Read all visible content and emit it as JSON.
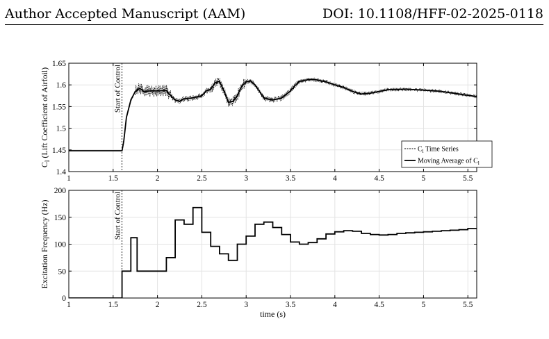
{
  "header": {
    "left": "Author Accepted Manuscript (AAM)",
    "right": "DOI: 10.1108/HFF-02-2025-0118"
  },
  "chart_data": [
    {
      "type": "line",
      "ylabel": "C_l (Lift Coefficient of Airfoil)",
      "xlim": [
        1,
        5.6
      ],
      "ylim": [
        1.4,
        1.65
      ],
      "xticks": [
        "1",
        "1.5",
        "2",
        "2.5",
        "3",
        "3.5",
        "4",
        "4.5",
        "5",
        "5.5"
      ],
      "yticks": [
        "1.4",
        "1.45",
        "1.5",
        "1.55",
        "1.6",
        "1.65"
      ],
      "grid": true,
      "annotation": {
        "text": "Start of Control",
        "x": 1.6
      },
      "legend": {
        "position": "bottom-right",
        "entries": [
          {
            "name": "C_l Time Series",
            "style": "dashed"
          },
          {
            "name": "Moving Average of C_l",
            "style": "solid"
          }
        ]
      },
      "series": [
        {
          "name": "Moving Average of C_l",
          "x": [
            1,
            1.6,
            1.62,
            1.65,
            1.7,
            1.75,
            1.8,
            1.85,
            1.9,
            2.0,
            2.1,
            2.15,
            2.2,
            2.25,
            2.3,
            2.4,
            2.5,
            2.55,
            2.6,
            2.65,
            2.7,
            2.75,
            2.8,
            2.85,
            2.9,
            2.95,
            3.0,
            3.05,
            3.1,
            3.2,
            3.3,
            3.4,
            3.5,
            3.55,
            3.6,
            3.7,
            3.75,
            3.8,
            3.9,
            4.0,
            4.1,
            4.2,
            4.3,
            4.4,
            4.5,
            4.6,
            4.8,
            5.0,
            5.2,
            5.4,
            5.6
          ],
          "y": [
            1.448,
            1.448,
            1.47,
            1.525,
            1.565,
            1.585,
            1.592,
            1.584,
            1.586,
            1.586,
            1.587,
            1.575,
            1.565,
            1.562,
            1.568,
            1.57,
            1.575,
            1.586,
            1.59,
            1.605,
            1.608,
            1.586,
            1.56,
            1.562,
            1.575,
            1.597,
            1.607,
            1.609,
            1.6,
            1.57,
            1.565,
            1.57,
            1.586,
            1.598,
            1.608,
            1.612,
            1.613,
            1.611,
            1.607,
            1.6,
            1.594,
            1.585,
            1.579,
            1.581,
            1.585,
            1.589,
            1.59,
            1.588,
            1.585,
            1.579,
            1.573
          ]
        }
      ]
    },
    {
      "type": "line",
      "xlabel": "time (s)",
      "ylabel": "Excitation Frequency (Hz)",
      "xlim": [
        1,
        5.6
      ],
      "ylim": [
        0,
        200
      ],
      "xticks": [
        "1",
        "1.5",
        "2",
        "2.5",
        "3",
        "3.5",
        "4",
        "4.5",
        "5",
        "5.5"
      ],
      "yticks": [
        "0",
        "50",
        "100",
        "150",
        "200"
      ],
      "grid": true,
      "annotation": {
        "text": "Start of Control",
        "x": 1.6
      },
      "series": [
        {
          "name": "",
          "step": true,
          "x": [
            1,
            1.6,
            1.7,
            1.77,
            2.1,
            2.2,
            2.3,
            2.4,
            2.5,
            2.6,
            2.7,
            2.8,
            2.9,
            3.0,
            3.1,
            3.2,
            3.3,
            3.4,
            3.5,
            3.6,
            3.7,
            3.8,
            3.9,
            4.0,
            4.1,
            4.2,
            4.3,
            4.4,
            4.5,
            4.6,
            4.7,
            4.8,
            4.9,
            5.0,
            5.1,
            5.2,
            5.3,
            5.4,
            5.5,
            5.6
          ],
          "y": [
            0,
            50,
            112,
            50,
            75,
            145,
            137,
            168,
            122,
            96,
            82,
            70,
            100,
            115,
            137,
            141,
            131,
            118,
            104,
            100,
            103,
            110,
            119,
            123,
            125,
            124,
            120,
            118,
            117,
            118,
            120,
            121,
            122,
            123,
            124,
            125,
            126,
            127,
            129,
            129
          ]
        }
      ]
    }
  ]
}
